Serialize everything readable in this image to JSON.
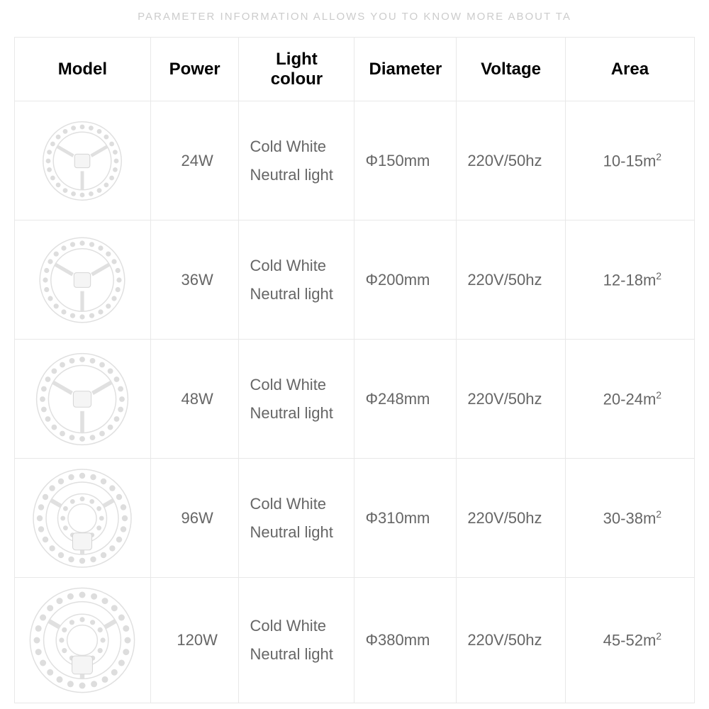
{
  "subtitle": "PARAMETER INFORMATION ALLOWS YOU TO KNOW MORE ABOUT TA",
  "columns": [
    "Model",
    "Power",
    "Light colour",
    "Diameter",
    "Voltage",
    "Area"
  ],
  "rows": [
    {
      "power": "24W",
      "light1": "Cold White",
      "light2": "Neutral light",
      "diameter": "Φ150mm",
      "voltage": "220V/50hz",
      "area": "10-15m",
      "area_sup": "2",
      "model_size": 120,
      "has_inner_ring": false
    },
    {
      "power": "36W",
      "light1": "Cold White",
      "light2": "Neutral light",
      "diameter": "Φ200mm",
      "voltage": "220V/50hz",
      "area": "12-18m",
      "area_sup": "2",
      "model_size": 130,
      "has_inner_ring": false
    },
    {
      "power": "48W",
      "light1": "Cold White",
      "light2": "Neutral light",
      "diameter": "Φ248mm",
      "voltage": "220V/50hz",
      "area": "20-24m",
      "area_sup": "2",
      "model_size": 140,
      "has_inner_ring": false
    },
    {
      "power": "96W",
      "light1": "Cold White",
      "light2": "Neutral light",
      "diameter": "Φ310mm",
      "voltage": "220V/50hz",
      "area": "30-38m",
      "area_sup": "2",
      "model_size": 150,
      "has_inner_ring": true
    },
    {
      "power": "120W",
      "light1": "Cold White",
      "light2": "Neutral light",
      "diameter": "Φ380mm",
      "voltage": "220V/50hz",
      "area": "45-52m",
      "area_sup": "2",
      "model_size": 160,
      "has_inner_ring": true
    }
  ],
  "styling": {
    "subtitle_color": "#cccccc",
    "border_color": "#e8e8e8",
    "header_text_color": "#000000",
    "cell_text_color": "#666666",
    "header_font_size": 24,
    "cell_font_size": 22,
    "background_color": "#ffffff",
    "svg_stroke_color": "#e0e0e0",
    "svg_dot_color": "#dddddd"
  }
}
